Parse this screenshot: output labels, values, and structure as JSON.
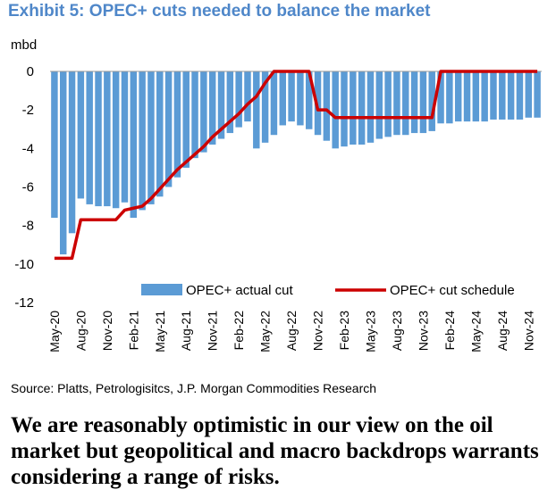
{
  "title": "Exhibit 5: OPEC+ cuts needed to balance the market",
  "unit_label": "mbd",
  "source": "Source: Platts, Petrologisitcs, J.P. Morgan Commodities Research",
  "commentary": "We are reasonably optimistic in our view on the oil market but geopolitical and macro backdrops warrants considering a range of risks.",
  "chart_data": {
    "type": "bar",
    "title": "Exhibit 5: OPEC+ cuts needed to balance the market",
    "ylabel": "mbd",
    "xlabel": "",
    "ylim": [
      -12,
      0
    ],
    "yticks": [
      0,
      -2,
      -4,
      -6,
      -8,
      -10,
      -12
    ],
    "grid": false,
    "legend_position": "bottom",
    "categories": [
      "May-20",
      "Jun-20",
      "Jul-20",
      "Aug-20",
      "Sep-20",
      "Oct-20",
      "Nov-20",
      "Dec-20",
      "Jan-21",
      "Feb-21",
      "Mar-21",
      "Apr-21",
      "May-21",
      "Jun-21",
      "Jul-21",
      "Aug-21",
      "Sep-21",
      "Oct-21",
      "Nov-21",
      "Dec-21",
      "Jan-22",
      "Feb-22",
      "Mar-22",
      "Apr-22",
      "May-22",
      "Jun-22",
      "Jul-22",
      "Aug-22",
      "Sep-22",
      "Oct-22",
      "Nov-22",
      "Dec-22",
      "Jan-23",
      "Feb-23",
      "Mar-23",
      "Apr-23",
      "May-23",
      "Jun-23",
      "Jul-23",
      "Aug-23",
      "Sep-23",
      "Oct-23",
      "Nov-23",
      "Dec-23",
      "Jan-24",
      "Feb-24",
      "Mar-24",
      "Apr-24",
      "May-24",
      "Jun-24",
      "Jul-24",
      "Aug-24",
      "Sep-24",
      "Oct-24",
      "Nov-24",
      "Dec-24"
    ],
    "tick_labels": [
      "May-20",
      "Aug-20",
      "Nov-20",
      "Feb-21",
      "May-21",
      "Aug-21",
      "Nov-21",
      "Feb-22",
      "May-22",
      "Aug-22",
      "Nov-22",
      "Feb-23",
      "May-23",
      "Aug-23",
      "Nov-23",
      "Feb-24",
      "May-24",
      "Aug-24",
      "Nov-24"
    ],
    "series": [
      {
        "name": "OPEC+ actual cut",
        "type": "bar",
        "color": "#5b9bd5",
        "values": [
          -7.6,
          -9.5,
          -8.4,
          -6.6,
          -6.9,
          -7.0,
          -7.0,
          -7.1,
          -6.8,
          -7.6,
          -7.2,
          -6.9,
          -6.5,
          -6.0,
          -5.5,
          -5.0,
          -4.5,
          -4.2,
          -3.8,
          -3.5,
          -3.2,
          -2.9,
          -2.6,
          -4.0,
          -3.7,
          -3.3,
          -2.8,
          -2.6,
          -2.8,
          -3.0,
          -3.3,
          -3.6,
          -4.0,
          -3.9,
          -3.8,
          -3.8,
          -3.7,
          -3.5,
          -3.4,
          -3.3,
          -3.3,
          -3.2,
          -3.2,
          -3.1,
          -2.7,
          -2.7,
          -2.6,
          -2.6,
          -2.6,
          -2.6,
          -2.5,
          -2.5,
          -2.5,
          -2.5,
          -2.4,
          -2.4
        ]
      },
      {
        "name": "OPEC+ cut schedule",
        "type": "line",
        "color": "#cc0000",
        "values": [
          -9.7,
          -9.7,
          -9.7,
          -7.7,
          -7.7,
          -7.7,
          -7.7,
          -7.7,
          -7.2,
          -7.1,
          -7.0,
          -6.6,
          -6.1,
          -5.6,
          -5.1,
          -4.7,
          -4.3,
          -3.9,
          -3.4,
          -3.0,
          -2.6,
          -2.2,
          -1.7,
          -1.3,
          -0.6,
          0.0,
          0.0,
          0.0,
          0.0,
          0.0,
          -2.0,
          -2.0,
          -2.4,
          -2.4,
          -2.4,
          -2.4,
          -2.4,
          -2.4,
          -2.4,
          -2.4,
          -2.4,
          -2.4,
          -2.4,
          -2.4,
          0.0,
          0.0,
          0.0,
          0.0,
          0.0,
          0.0,
          0.0,
          0.0,
          0.0,
          0.0,
          0.0,
          0.0
        ]
      }
    ]
  }
}
